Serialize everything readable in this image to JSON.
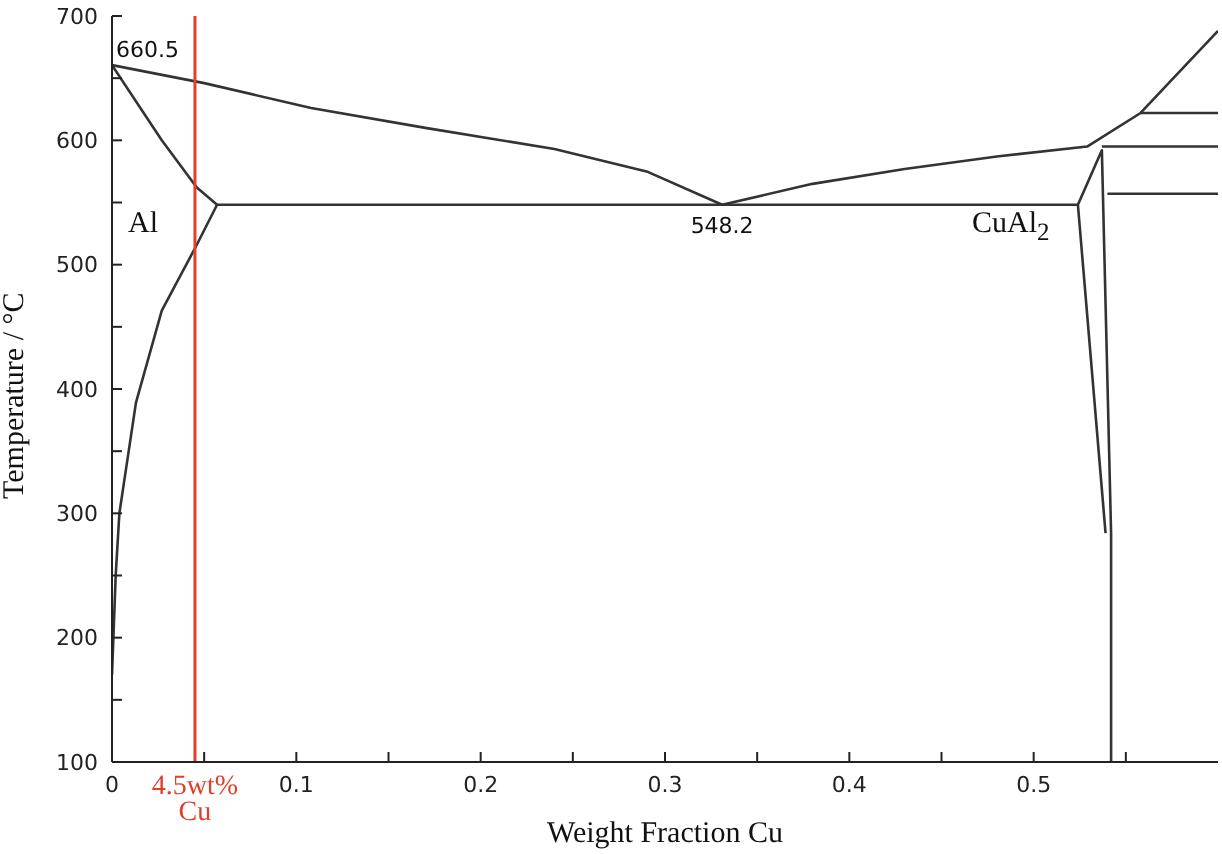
{
  "chart_data": {
    "type": "line",
    "xlabel": "Weight Fraction Cu",
    "ylabel": "Temperature / °C",
    "xlim": [
      0,
      0.6
    ],
    "ylim": [
      100,
      700
    ],
    "xticks": [
      0,
      {
        "value": 0.05,
        "label": null
      },
      0.1,
      {
        "value": 0.15,
        "label": null
      },
      0.2,
      {
        "value": 0.25,
        "label": null
      },
      0.3,
      {
        "value": 0.35,
        "label": null
      },
      0.4,
      {
        "value": 0.45,
        "label": null
      },
      0.5,
      {
        "value": 0.55,
        "label": null
      }
    ],
    "yticks": [
      100,
      {
        "value": 150,
        "label": null
      },
      200,
      {
        "value": 250,
        "label": null
      },
      300,
      {
        "value": 350,
        "label": null
      },
      400,
      {
        "value": 450,
        "label": null
      },
      500,
      {
        "value": 550,
        "label": null
      },
      600,
      {
        "value": 650,
        "label": null
      },
      700
    ],
    "series": [
      {
        "color": "#333333",
        "x": [
          0,
          0.05,
          0.108,
          0.17,
          0.24,
          0.29,
          0.331
        ],
        "values": [
          660.5,
          646,
          626,
          610,
          593,
          575,
          548.2
        ]
      },
      {
        "color": "#333333",
        "x": [
          0.331,
          0.38,
          0.43,
          0.48,
          0.529,
          0.558,
          0.6
        ],
        "values": [
          548.2,
          565,
          577,
          587,
          595,
          622,
          688
        ]
      },
      {
        "color": "#333333",
        "x": [
          0,
          0.027,
          0.046,
          0.057
        ],
        "values": [
          660.5,
          600,
          562,
          548.2
        ]
      },
      {
        "color": "#333333",
        "x": [
          0.057,
          0.046,
          0.027,
          0.013,
          0.004,
          0.002,
          0
        ],
        "values": [
          548.2,
          516,
          463,
          389,
          300,
          250,
          170
        ]
      },
      {
        "color": "#333333",
        "x": [
          0.057,
          0.524
        ],
        "values": [
          548.2,
          548.2
        ]
      },
      {
        "color": "#333333",
        "x": [
          0.539,
          0.524,
          0.537,
          0.542,
          0.542
        ],
        "values": [
          284,
          548.2,
          592,
          284,
          100
        ]
      },
      {
        "color": "#333333",
        "x": [
          0.558,
          0.6
        ],
        "values": [
          622,
          622
        ]
      },
      {
        "color": "#333333",
        "x": [
          0.537,
          0.6
        ],
        "values": [
          595,
          595
        ]
      },
      {
        "color": "#333333",
        "x": [
          0.54,
          0.6
        ],
        "values": [
          557,
          557
        ]
      }
    ],
    "ref_lines": [
      {
        "axis": "x",
        "value": 0.045,
        "label": "4.5wt% Cu",
        "color": "#e0402a"
      }
    ],
    "annotations": [
      {
        "text": "660.5",
        "x": 0,
        "y": 660.5
      },
      {
        "text": "548.2",
        "x": 0.331,
        "y": 548.2
      },
      "Al",
      "CuAl$_{2}$"
    ],
    "marker": "none",
    "line_style": "solid"
  }
}
